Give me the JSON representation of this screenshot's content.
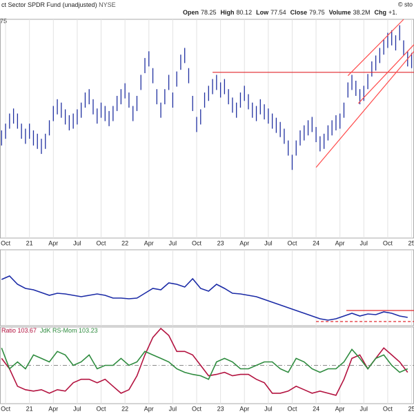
{
  "header": {
    "title": "ct Sector SPDR Fund (unadjusted)",
    "exchange": "NYSE",
    "watermark": "© sto",
    "left_fragment": "75",
    "quote": [
      {
        "label": "Open",
        "value": 78.25
      },
      {
        "label": "High",
        "value": 80.12
      },
      {
        "label": "Low",
        "value": 77.54
      },
      {
        "label": "Close",
        "value": 79.75
      },
      {
        "label": "Volume",
        "value": "38.2M"
      },
      {
        "label": "Chg",
        "value": "+1."
      }
    ]
  },
  "chart_data": [
    {
      "type": "ohlc",
      "color": "#1f2fa0",
      "grid": true,
      "xlim": [
        -0.7,
        51.3
      ],
      "ylim": [
        57,
        83
      ],
      "xticks": [
        {
          "value": 0,
          "label": "Oct"
        },
        {
          "value": 3,
          "label": "21"
        },
        {
          "value": 6,
          "label": "Apr"
        },
        {
          "value": 9,
          "label": "Jul"
        },
        {
          "value": 12,
          "label": "Oct"
        },
        {
          "value": 15,
          "label": "22"
        },
        {
          "value": 18,
          "label": "Apr"
        },
        {
          "value": 21,
          "label": "Jul"
        },
        {
          "value": 24,
          "label": "Oct"
        },
        {
          "value": 27,
          "label": "23"
        },
        {
          "value": 30,
          "label": "Apr"
        },
        {
          "value": 33,
          "label": "Jul"
        },
        {
          "value": 36,
          "label": "Oct"
        },
        {
          "value": 39,
          "label": "24"
        },
        {
          "value": 42,
          "label": "Apr"
        },
        {
          "value": 45,
          "label": "Jul"
        },
        {
          "value": 48,
          "label": "Oct"
        },
        {
          "value": 51,
          "label": "25"
        }
      ],
      "x": [
        -0.5,
        0,
        0.5,
        1,
        1.5,
        2,
        2.5,
        3,
        3.5,
        4,
        4.5,
        5,
        5.5,
        6,
        6.5,
        7,
        7.5,
        8,
        8.5,
        9,
        9.5,
        10,
        10.5,
        11,
        11.5,
        12,
        12.5,
        13,
        13.5,
        14,
        14.5,
        15,
        15.5,
        16,
        16.5,
        17,
        17.5,
        18,
        18.5,
        19,
        19.5,
        20,
        20.5,
        21,
        21.5,
        22,
        22.5,
        23,
        23.5,
        24,
        24.5,
        25,
        25.5,
        26,
        26.5,
        27,
        27.5,
        28,
        28.5,
        29,
        29.5,
        30,
        30.5,
        31,
        31.5,
        32,
        32.5,
        33,
        33.5,
        34,
        34.5,
        35,
        35.5,
        36,
        36.5,
        37,
        37.5,
        38,
        38.5,
        39,
        39.5,
        40,
        40.5,
        41,
        41.5,
        42,
        42.5,
        43,
        43.5,
        44,
        44.5,
        45,
        45.5,
        46,
        46.5,
        47,
        47.5,
        48,
        48.5,
        49,
        49.5,
        50,
        50.5,
        51
      ],
      "high": [
        69.8,
        70.6,
        71.8,
        72.4,
        71.8,
        70.6,
        70.0,
        70.6,
        69.8,
        69.4,
        68.8,
        69.4,
        71.0,
        72.7,
        73.5,
        73.1,
        72.3,
        71.6,
        71.8,
        72.3,
        73.1,
        74.3,
        74.7,
        73.5,
        72.4,
        73.1,
        72.7,
        72.1,
        72.7,
        73.9,
        74.7,
        75.4,
        74.3,
        72.7,
        73.9,
        76.4,
        78.4,
        79.2,
        77.2,
        74.7,
        73.1,
        74.7,
        76.4,
        74.3,
        76.8,
        78.8,
        79.6,
        77.2,
        73.9,
        71.4,
        72.3,
        74.3,
        75.1,
        75.9,
        76.4,
        75.5,
        75.9,
        74.7,
        73.7,
        73.1,
        74.3,
        75.1,
        74.1,
        73.1,
        72.7,
        73.5,
        72.9,
        72.4,
        71.8,
        71.3,
        70.8,
        70.0,
        68.6,
        66.9,
        68.6,
        69.8,
        70.4,
        71.0,
        71.4,
        70.2,
        69.1,
        69.4,
        70.4,
        71.0,
        71.6,
        71.8,
        73.1,
        75.5,
        76.4,
        75.7,
        74.7,
        75.1,
        76.5,
        78.0,
        78.7,
        79.6,
        80.6,
        81.4,
        81.7,
        81.1,
        82.3,
        80.5,
        79.2,
        79.0
      ],
      "low": [
        68.0,
        68.8,
        70.0,
        70.6,
        70.0,
        68.8,
        68.2,
        68.8,
        68.0,
        67.6,
        67.0,
        67.6,
        69.2,
        70.9,
        71.7,
        71.3,
        70.5,
        69.8,
        70.0,
        70.5,
        71.3,
        72.5,
        72.9,
        71.7,
        70.6,
        71.3,
        70.9,
        70.3,
        70.9,
        72.1,
        72.9,
        73.6,
        72.5,
        70.9,
        72.1,
        74.6,
        76.6,
        77.4,
        75.4,
        72.9,
        71.3,
        72.9,
        74.6,
        72.5,
        75.0,
        77.0,
        77.8,
        75.4,
        72.1,
        69.6,
        70.5,
        72.5,
        73.3,
        74.1,
        74.6,
        73.7,
        74.1,
        72.9,
        71.9,
        71.3,
        72.5,
        73.3,
        72.3,
        71.3,
        70.9,
        71.7,
        71.1,
        70.6,
        70.0,
        69.5,
        69.0,
        68.2,
        66.8,
        65.1,
        66.8,
        68.0,
        68.6,
        69.2,
        69.6,
        68.4,
        67.3,
        67.6,
        68.6,
        69.2,
        69.8,
        70.0,
        71.3,
        73.7,
        74.6,
        73.9,
        72.9,
        73.3,
        74.7,
        76.2,
        76.9,
        77.8,
        78.8,
        79.6,
        79.9,
        79.3,
        80.5,
        78.7,
        77.4,
        77.2
      ],
      "trendlines": [
        {
          "x": [
            26,
            51.3
          ],
          "y": [
            76.7,
            76.7
          ],
          "color": "#e0262b"
        },
        {
          "x": [
            39,
            51.3
          ],
          "y": [
            65.4,
            79.2
          ],
          "color": "#ff4a4a"
        },
        {
          "x": [
            44.3,
            51.3
          ],
          "y": [
            73.0,
            80.0
          ],
          "color": "#ff4a4a"
        },
        {
          "x": [
            43,
            50
          ],
          "y": [
            76.3,
            83
          ],
          "color": "#ff4a4a"
        }
      ]
    },
    {
      "type": "line",
      "grid": true,
      "xlim": [
        -0.7,
        51.3
      ],
      "ylim": [
        0,
        110
      ],
      "xticks": [
        0,
        3,
        6,
        9,
        12,
        15,
        18,
        21,
        24,
        27,
        30,
        33,
        36,
        39,
        42,
        45,
        48,
        51
      ],
      "x": [
        -0.5,
        0.5,
        1.5,
        2.5,
        3.5,
        4.5,
        5.5,
        6.5,
        7.5,
        8.5,
        9.5,
        10.5,
        11.5,
        12.5,
        13.5,
        14.5,
        15.5,
        16.5,
        17.5,
        18.5,
        19.5,
        20.5,
        21.5,
        22.5,
        23.5,
        24.5,
        25.5,
        26.5,
        27.5,
        28.5,
        29.5,
        30.5,
        31.5,
        32.5,
        33.5,
        34.5,
        35.5,
        36.5,
        37.5,
        38.5,
        39.5,
        40.5,
        41.5,
        42.5,
        43.5,
        44.5,
        45.5,
        46.5,
        47.5,
        48.5,
        49.5,
        50.5
      ],
      "series": [
        {
          "color": "#1a2aa6",
          "values": [
            67,
            72,
            60,
            54,
            52,
            48,
            44,
            47,
            46,
            44,
            42,
            44,
            46,
            44,
            40,
            40,
            39,
            40,
            47,
            54,
            52,
            62,
            60,
            56,
            68,
            54,
            50,
            60,
            54,
            47,
            46,
            44,
            42,
            38,
            34,
            30,
            26,
            22,
            18,
            14,
            10,
            8,
            10,
            14,
            18,
            14,
            17,
            16,
            20,
            18,
            14,
            12
          ]
        }
      ],
      "trendlines": [
        {
          "x": [
            42.8,
            51.3
          ],
          "y": [
            22,
            22
          ],
          "color": "#e0262b"
        },
        {
          "x": [
            39,
            51.3
          ],
          "y": [
            6,
            6
          ],
          "color": "#e0262b",
          "dashed": true
        }
      ]
    },
    {
      "type": "line",
      "grid": true,
      "xlim": [
        -0.7,
        51.3
      ],
      "ylim": [
        89,
        111
      ],
      "reference": 100,
      "xticks": [
        {
          "value": 0,
          "label": "Oct"
        },
        {
          "value": 3,
          "label": "21"
        },
        {
          "value": 6,
          "label": "Apr"
        },
        {
          "value": 9,
          "label": "Jul"
        },
        {
          "value": 12,
          "label": "Oct"
        },
        {
          "value": 15,
          "label": "22"
        },
        {
          "value": 18,
          "label": "Apr"
        },
        {
          "value": 21,
          "label": "Jul"
        },
        {
          "value": 24,
          "label": "Oct"
        },
        {
          "value": 27,
          "label": "23"
        },
        {
          "value": 30,
          "label": "Apr"
        },
        {
          "value": 33,
          "label": "Jul"
        },
        {
          "value": 36,
          "label": "Oct"
        },
        {
          "value": 39,
          "label": "24"
        },
        {
          "value": 42,
          "label": "Apr"
        },
        {
          "value": 45,
          "label": "Jul"
        },
        {
          "value": 48,
          "label": "Oct"
        },
        {
          "value": 51,
          "label": "25"
        }
      ],
      "x": [
        -0.5,
        0.5,
        1.5,
        2.5,
        3.5,
        4.5,
        5.5,
        6.5,
        7.5,
        8.5,
        9.5,
        10.5,
        11.5,
        12.5,
        13.5,
        14.5,
        15.5,
        16.5,
        17.5,
        18.5,
        19.5,
        20.5,
        21.5,
        22.5,
        23.5,
        24.5,
        25.5,
        26.5,
        27.5,
        28.5,
        29.5,
        30.5,
        31.5,
        32.5,
        33.5,
        34.5,
        35.5,
        36.5,
        37.5,
        38.5,
        39.5,
        40.5,
        41.5,
        42.5,
        43.5,
        44.5,
        45.5,
        46.5,
        47.5,
        48.5,
        49.5,
        50.5
      ],
      "series": [
        {
          "name": "Ratio 103.67",
          "color": "#b3123f",
          "values": [
            102,
            99,
            94,
            93,
            92.6,
            93,
            92,
            93,
            92.6,
            95,
            96,
            96,
            95,
            96,
            94,
            92,
            93,
            97,
            103,
            108,
            110.6,
            108.6,
            104,
            104,
            103,
            100,
            97,
            97.4,
            98,
            97,
            97.4,
            97.4,
            96,
            95,
            92,
            92,
            92.6,
            94,
            93,
            92,
            92.6,
            92,
            91.4,
            96,
            102,
            103,
            99,
            102,
            105,
            103,
            101,
            98
          ]
        },
        {
          "name": "JdK RS-Mom 103.23",
          "color": "#2e8b3e",
          "values": [
            105,
            99,
            101,
            99,
            103,
            102,
            101,
            104,
            103,
            100,
            101,
            103,
            99,
            100,
            100,
            102,
            100,
            101,
            104,
            103,
            102,
            101,
            99,
            98,
            97.4,
            97,
            96,
            101,
            102,
            101,
            99,
            99,
            100,
            101,
            101,
            99,
            98,
            102,
            101,
            99,
            98,
            99,
            99,
            101,
            104.6,
            102,
            99,
            102,
            103,
            100,
            98,
            99
          ]
        }
      ]
    }
  ]
}
